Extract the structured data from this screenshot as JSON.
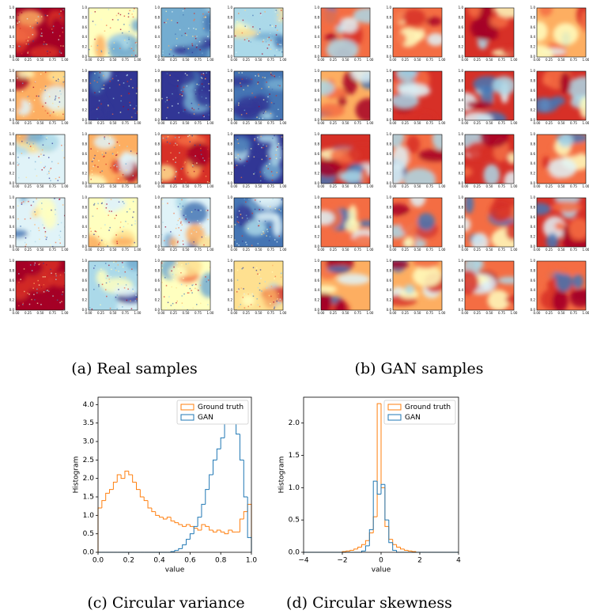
{
  "thumbnail_axes": {
    "xticks": [
      "0.00",
      "0.25",
      "0.50",
      "0.75",
      "1.00"
    ],
    "yticks": [
      "0.0",
      "0.2",
      "0.4",
      "0.6",
      "0.8",
      "1.0"
    ]
  },
  "captions": [
    "(a) Real samples",
    "(b) GAN samples",
    "(c) Circular variance",
    "(d) Circular skewness"
  ],
  "chart_data": [
    {
      "type": "histogram",
      "xlabel": "value",
      "ylabel": "Histogram",
      "legend": "upper right",
      "bins": [
        0,
        0.025,
        0.05,
        0.075,
        0.1,
        0.125,
        0.15,
        0.175,
        0.2,
        0.225,
        0.25,
        0.275,
        0.3,
        0.325,
        0.35,
        0.375,
        0.4,
        0.425,
        0.45,
        0.475,
        0.5,
        0.525,
        0.55,
        0.575,
        0.6,
        0.625,
        0.65,
        0.675,
        0.7,
        0.725,
        0.75,
        0.775,
        0.8,
        0.825,
        0.85,
        0.875,
        0.9,
        0.925,
        0.95,
        0.975,
        1.0
      ],
      "series": [
        {
          "name": "Ground truth",
          "color": "#ff7f0e",
          "values": [
            1.2,
            1.4,
            1.6,
            1.7,
            1.9,
            2.1,
            2.0,
            2.2,
            2.1,
            1.9,
            1.7,
            1.5,
            1.4,
            1.2,
            1.1,
            1.0,
            0.95,
            0.9,
            0.95,
            0.85,
            0.8,
            0.75,
            0.7,
            0.75,
            0.7,
            0.65,
            0.6,
            0.75,
            0.7,
            0.6,
            0.55,
            0.6,
            0.55,
            0.5,
            0.6,
            0.55,
            0.55,
            0.9,
            1.1,
            1.3
          ]
        },
        {
          "name": "GAN",
          "color": "#1f77b4",
          "values": [
            0,
            0,
            0,
            0,
            0,
            0,
            0,
            0,
            0,
            0,
            0,
            0,
            0,
            0,
            0,
            0,
            0,
            0,
            0,
            0.02,
            0.05,
            0.1,
            0.2,
            0.35,
            0.5,
            0.7,
            0.95,
            1.3,
            1.7,
            2.1,
            2.5,
            2.8,
            3.1,
            3.5,
            3.9,
            3.7,
            3.2,
            2.5,
            1.5,
            0.4
          ]
        }
      ],
      "xlim": [
        0,
        1
      ],
      "ylim": [
        0,
        4.2
      ],
      "xticks": [
        {
          "value": 0,
          "label": "0.0"
        },
        {
          "value": 0.2,
          "label": "0.2"
        },
        {
          "value": 0.4,
          "label": "0.4"
        },
        {
          "value": 0.6,
          "label": "0.6"
        },
        {
          "value": 0.8,
          "label": "0.8"
        },
        {
          "value": 1,
          "label": "1.0"
        }
      ],
      "yticks": [
        {
          "value": 0,
          "label": "0.0"
        },
        0.5,
        {
          "value": 1,
          "label": "1.0"
        },
        1.5,
        {
          "value": 2,
          "label": "2.0"
        },
        2.5,
        {
          "value": 3,
          "label": "3.0"
        },
        3.5,
        {
          "value": 4,
          "label": "4.0"
        }
      ]
    },
    {
      "type": "histogram",
      "xlabel": "value",
      "ylabel": "Histogram",
      "legend": "upper right",
      "bins": [
        -4,
        -3.8,
        -3.6,
        -3.4,
        -3.2,
        -3,
        -2.8,
        -2.6,
        -2.4,
        -2.2,
        -2,
        -1.8,
        -1.6,
        -1.4,
        -1.2,
        -1,
        -0.8,
        -0.6,
        -0.4,
        -0.2,
        0,
        0.2,
        0.4,
        0.6,
        0.8,
        1,
        1.2,
        1.4,
        1.6,
        1.8,
        2,
        2.2,
        2.4,
        2.6,
        2.8,
        3,
        3.2,
        3.4,
        3.6,
        3.8,
        4
      ],
      "series": [
        {
          "name": "Ground truth",
          "color": "#ff7f0e",
          "values": [
            0,
            0,
            0,
            0,
            0,
            0,
            0,
            0,
            0,
            0,
            0.01,
            0.02,
            0.03,
            0.05,
            0.08,
            0.12,
            0.18,
            0.3,
            0.55,
            2.3,
            1.0,
            0.4,
            0.2,
            0.12,
            0.08,
            0.05,
            0.03,
            0.02,
            0.01,
            0,
            0,
            0,
            0,
            0,
            0,
            0,
            0,
            0,
            0,
            0
          ]
        },
        {
          "name": "GAN",
          "color": "#1f77b4",
          "values": [
            0,
            0,
            0,
            0,
            0,
            0,
            0,
            0,
            0,
            0,
            0,
            0,
            0,
            0,
            0,
            0.02,
            0.1,
            0.35,
            1.1,
            0.9,
            1.05,
            0.5,
            0.15,
            0.03,
            0,
            0,
            0,
            0,
            0,
            0,
            0,
            0,
            0,
            0,
            0,
            0,
            0,
            0,
            0,
            0
          ]
        }
      ],
      "xlim": [
        -4,
        4
      ],
      "ylim": [
        0,
        2.4
      ],
      "xticks": [
        {
          "value": -4,
          "label": "−4"
        },
        {
          "value": -2,
          "label": "−2"
        },
        0,
        2,
        4
      ],
      "yticks": [
        {
          "value": 0,
          "label": "0.0"
        },
        0.5,
        {
          "value": 1,
          "label": "1.0"
        },
        1.5,
        {
          "value": 2,
          "label": "2.0"
        }
      ]
    }
  ]
}
